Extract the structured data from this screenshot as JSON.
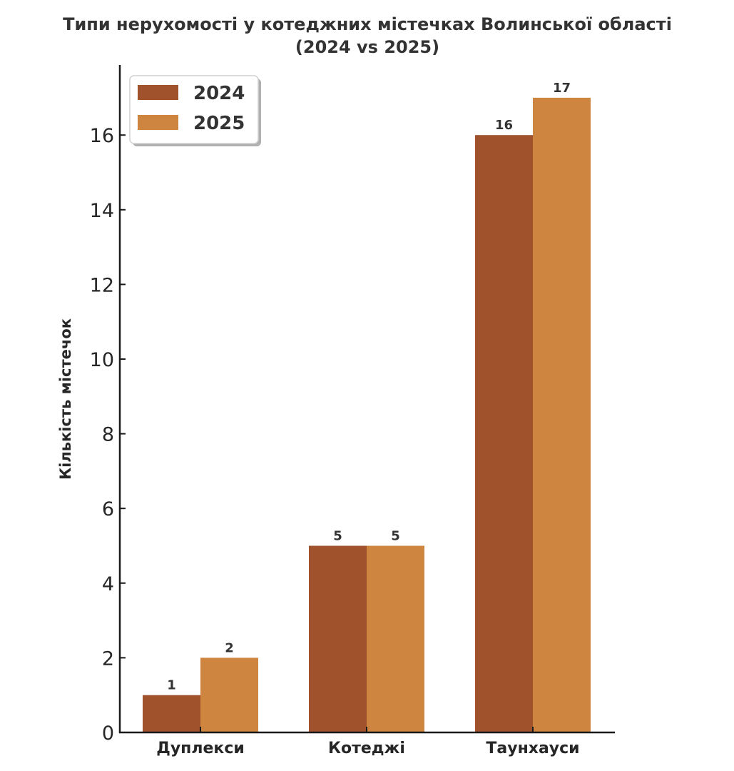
{
  "chart_data": {
    "type": "bar",
    "title": "Типи нерухомості у котеджних містечках Волинської області",
    "subtitle": "(2024 vs 2025)",
    "xlabel": "",
    "ylabel": "Кількість містечок",
    "categories": [
      "Дуплекси",
      "Котеджі",
      "Таунхауси"
    ],
    "series": [
      {
        "name": "2024",
        "color": "#A0522D",
        "values": [
          1,
          5,
          16
        ]
      },
      {
        "name": "2025",
        "color": "#CD853F",
        "values": [
          2,
          5,
          17
        ]
      }
    ],
    "ylim": [
      0,
      17.9
    ],
    "yticks": [
      0,
      2,
      4,
      6,
      8,
      10,
      12,
      14,
      16
    ],
    "grid": false,
    "legend_position": "top-left",
    "data_labels": true
  }
}
